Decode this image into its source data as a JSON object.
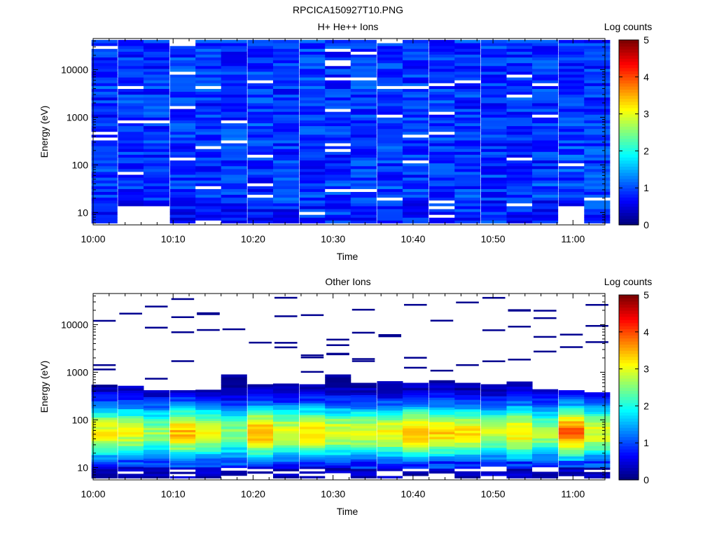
{
  "figure_title": "RPCICA150927T10.PNG",
  "chart_data": [
    {
      "type": "heatmap",
      "title": "H+ He++ Ions",
      "xlabel": "Time",
      "ylabel": "Energy (eV)",
      "colorbar_label": "Log counts",
      "x_ticks": [
        "10:00",
        "10:10",
        "10:20",
        "10:30",
        "10:40",
        "10:50",
        "11:00"
      ],
      "y_ticks": [
        "10",
        "100",
        "1000",
        "10000"
      ],
      "y_scale": "log",
      "y_range_eV": [
        5.5,
        45000
      ],
      "x_range_min": [
        0,
        64
      ],
      "colorbar_ticks": [
        "0",
        "1",
        "2",
        "3",
        "4",
        "5"
      ],
      "colorbar_range": [
        0,
        5
      ],
      "colormap": "jet",
      "time_bins_min": [
        1.4,
        4.7,
        7.9,
        11.2,
        14.4,
        17.6,
        20.9,
        24.1,
        27.4,
        30.6,
        33.8,
        37.1,
        40.3,
        43.6,
        46.8,
        50.1,
        53.3,
        56.5,
        59.8,
        63.0
      ],
      "energy_band_log_counts": [
        {
          "band": "10 eV",
          "values": [
            0.35,
            0.0,
            0.0,
            0.35,
            0.45,
            0.35,
            0.4,
            0.4,
            0.45,
            0.5,
            0.5,
            0.4,
            0.35,
            0.45,
            0.5,
            0.45,
            0.4,
            0.35,
            0.0,
            0.5
          ]
        },
        {
          "band": "30 eV",
          "values": [
            0.5,
            0.45,
            0.55,
            0.55,
            0.5,
            0.5,
            0.5,
            0.55,
            0.55,
            0.55,
            0.55,
            0.6,
            0.6,
            0.55,
            0.55,
            0.5,
            0.55,
            0.6,
            0.55,
            0.5
          ]
        },
        {
          "band": "100 eV",
          "values": [
            0.5,
            0.5,
            0.5,
            0.45,
            0.45,
            0.5,
            0.5,
            0.5,
            0.5,
            0.45,
            0.5,
            0.5,
            0.5,
            0.45,
            0.5,
            0.5,
            0.5,
            0.5,
            0.6,
            0.55
          ]
        },
        {
          "band": "1000 eV",
          "values": [
            0.5,
            0.55,
            0.5,
            0.5,
            0.5,
            0.55,
            0.55,
            0.55,
            0.5,
            0.5,
            0.5,
            0.5,
            0.55,
            0.55,
            0.5,
            0.5,
            0.5,
            0.5,
            0.55,
            0.5
          ]
        },
        {
          "band": "10000 eV",
          "values": [
            0.55,
            0.5,
            0.5,
            0.55,
            0.5,
            0.5,
            0.55,
            0.5,
            0.55,
            0.5,
            0.55,
            0.5,
            0.5,
            0.55,
            0.5,
            0.5,
            0.55,
            0.5,
            0.5,
            0.5
          ]
        }
      ]
    },
    {
      "type": "heatmap",
      "title": "Other Ions",
      "xlabel": "Time",
      "ylabel": "Energy (eV)",
      "colorbar_label": "Log counts",
      "x_ticks": [
        "10:00",
        "10:10",
        "10:20",
        "10:30",
        "10:40",
        "10:50",
        "11:00"
      ],
      "y_ticks": [
        "10",
        "100",
        "1000",
        "10000"
      ],
      "y_scale": "log",
      "y_range_eV": [
        5.5,
        45000
      ],
      "x_range_min": [
        0,
        64
      ],
      "colorbar_ticks": [
        "0",
        "1",
        "2",
        "3",
        "4",
        "5"
      ],
      "colorbar_range": [
        0,
        5
      ],
      "colormap": "jet",
      "time_bins_min": [
        1.4,
        4.7,
        7.9,
        11.2,
        14.4,
        17.6,
        20.9,
        24.1,
        27.4,
        30.6,
        33.8,
        37.1,
        40.3,
        43.6,
        46.8,
        50.1,
        53.3,
        56.5,
        59.8,
        63.0
      ],
      "peak_log_counts_40_100eV": [
        3.1,
        3.0,
        2.6,
        3.4,
        3.0,
        2.6,
        3.5,
        3.0,
        3.3,
        3.0,
        2.9,
        3.1,
        3.5,
        3.3,
        3.2,
        2.8,
        3.3,
        2.7,
        3.9,
        3.0
      ],
      "upper_edge_eV": [
        550,
        520,
        420,
        420,
        430,
        900,
        560,
        580,
        560,
        900,
        600,
        650,
        600,
        680,
        600,
        560,
        640,
        440,
        420,
        380
      ]
    }
  ]
}
